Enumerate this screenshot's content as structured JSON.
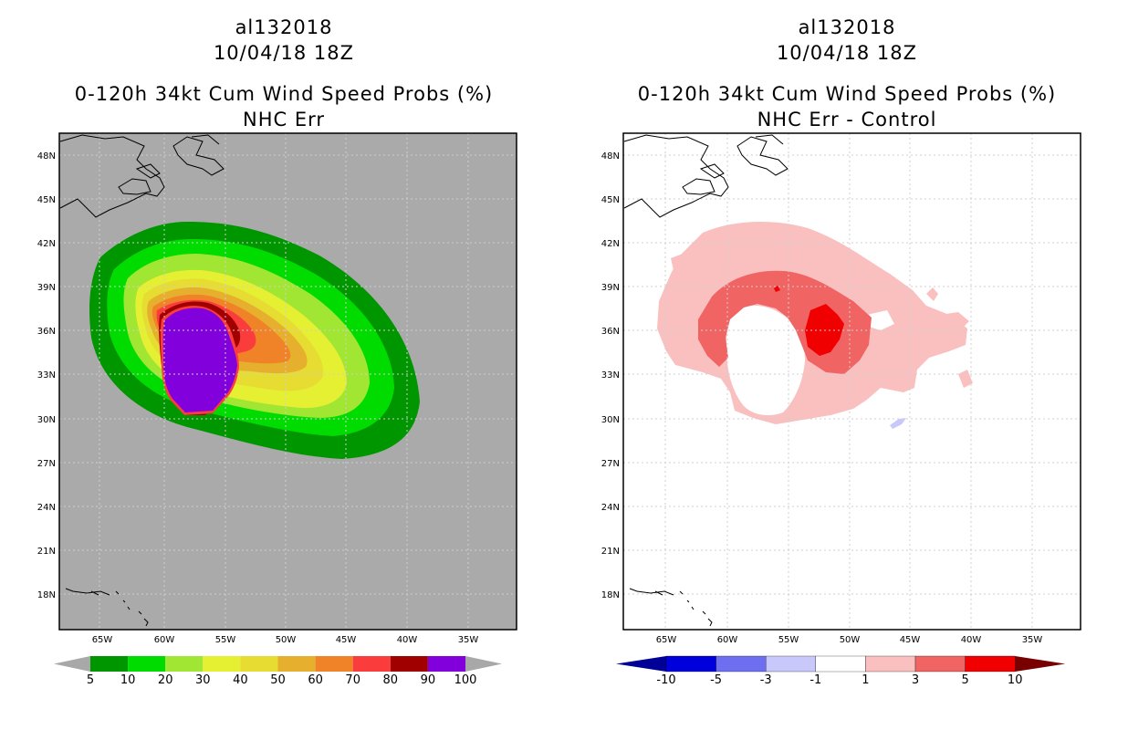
{
  "left_panel": {
    "storm_id": "al132018",
    "datetime": "10/04/18 18Z",
    "product": "0-120h 34kt Cum Wind Speed Probs (%)",
    "subtitle": "NHC Err",
    "lat_labels": [
      "48N",
      "45N",
      "42N",
      "39N",
      "36N",
      "33N",
      "30N",
      "27N",
      "24N",
      "21N",
      "18N"
    ],
    "lon_labels": [
      "65W",
      "60W",
      "55W",
      "50W",
      "45W",
      "40W",
      "35W"
    ],
    "colorbar": {
      "labels": [
        "5",
        "10",
        "20",
        "30",
        "40",
        "50",
        "60",
        "70",
        "80",
        "90",
        "100"
      ],
      "colors": [
        "#009600",
        "#00dc00",
        "#a0e632",
        "#e6f032",
        "#e6dc32",
        "#e6af2d",
        "#f08228",
        "#fa3c3c",
        "#a00000",
        "#8200dc"
      ],
      "end_color": "#a8a8a8"
    },
    "background_color": "#aaaaaa"
  },
  "right_panel": {
    "storm_id": "al132018",
    "datetime": "10/04/18 18Z",
    "product": "0-120h 34kt Cum Wind Speed Probs (%)",
    "subtitle": "NHC Err - Control",
    "lat_labels": [
      "48N",
      "45N",
      "42N",
      "39N",
      "36N",
      "33N",
      "30N",
      "27N",
      "24N",
      "21N",
      "18N"
    ],
    "lon_labels": [
      "65W",
      "60W",
      "55W",
      "50W",
      "45W",
      "40W",
      "35W"
    ],
    "colorbar": {
      "labels": [
        "-10",
        "-5",
        "-3",
        "-1",
        "1",
        "3",
        "5",
        "10"
      ],
      "colors": [
        "#0000dc",
        "#6e6ef0",
        "#c8c8fa",
        "#ffffff",
        "#fac0c0",
        "#f06464",
        "#f00000"
      ],
      "low_end_color": "#000096",
      "high_end_color": "#780000"
    },
    "background_color": "#ffffff"
  }
}
